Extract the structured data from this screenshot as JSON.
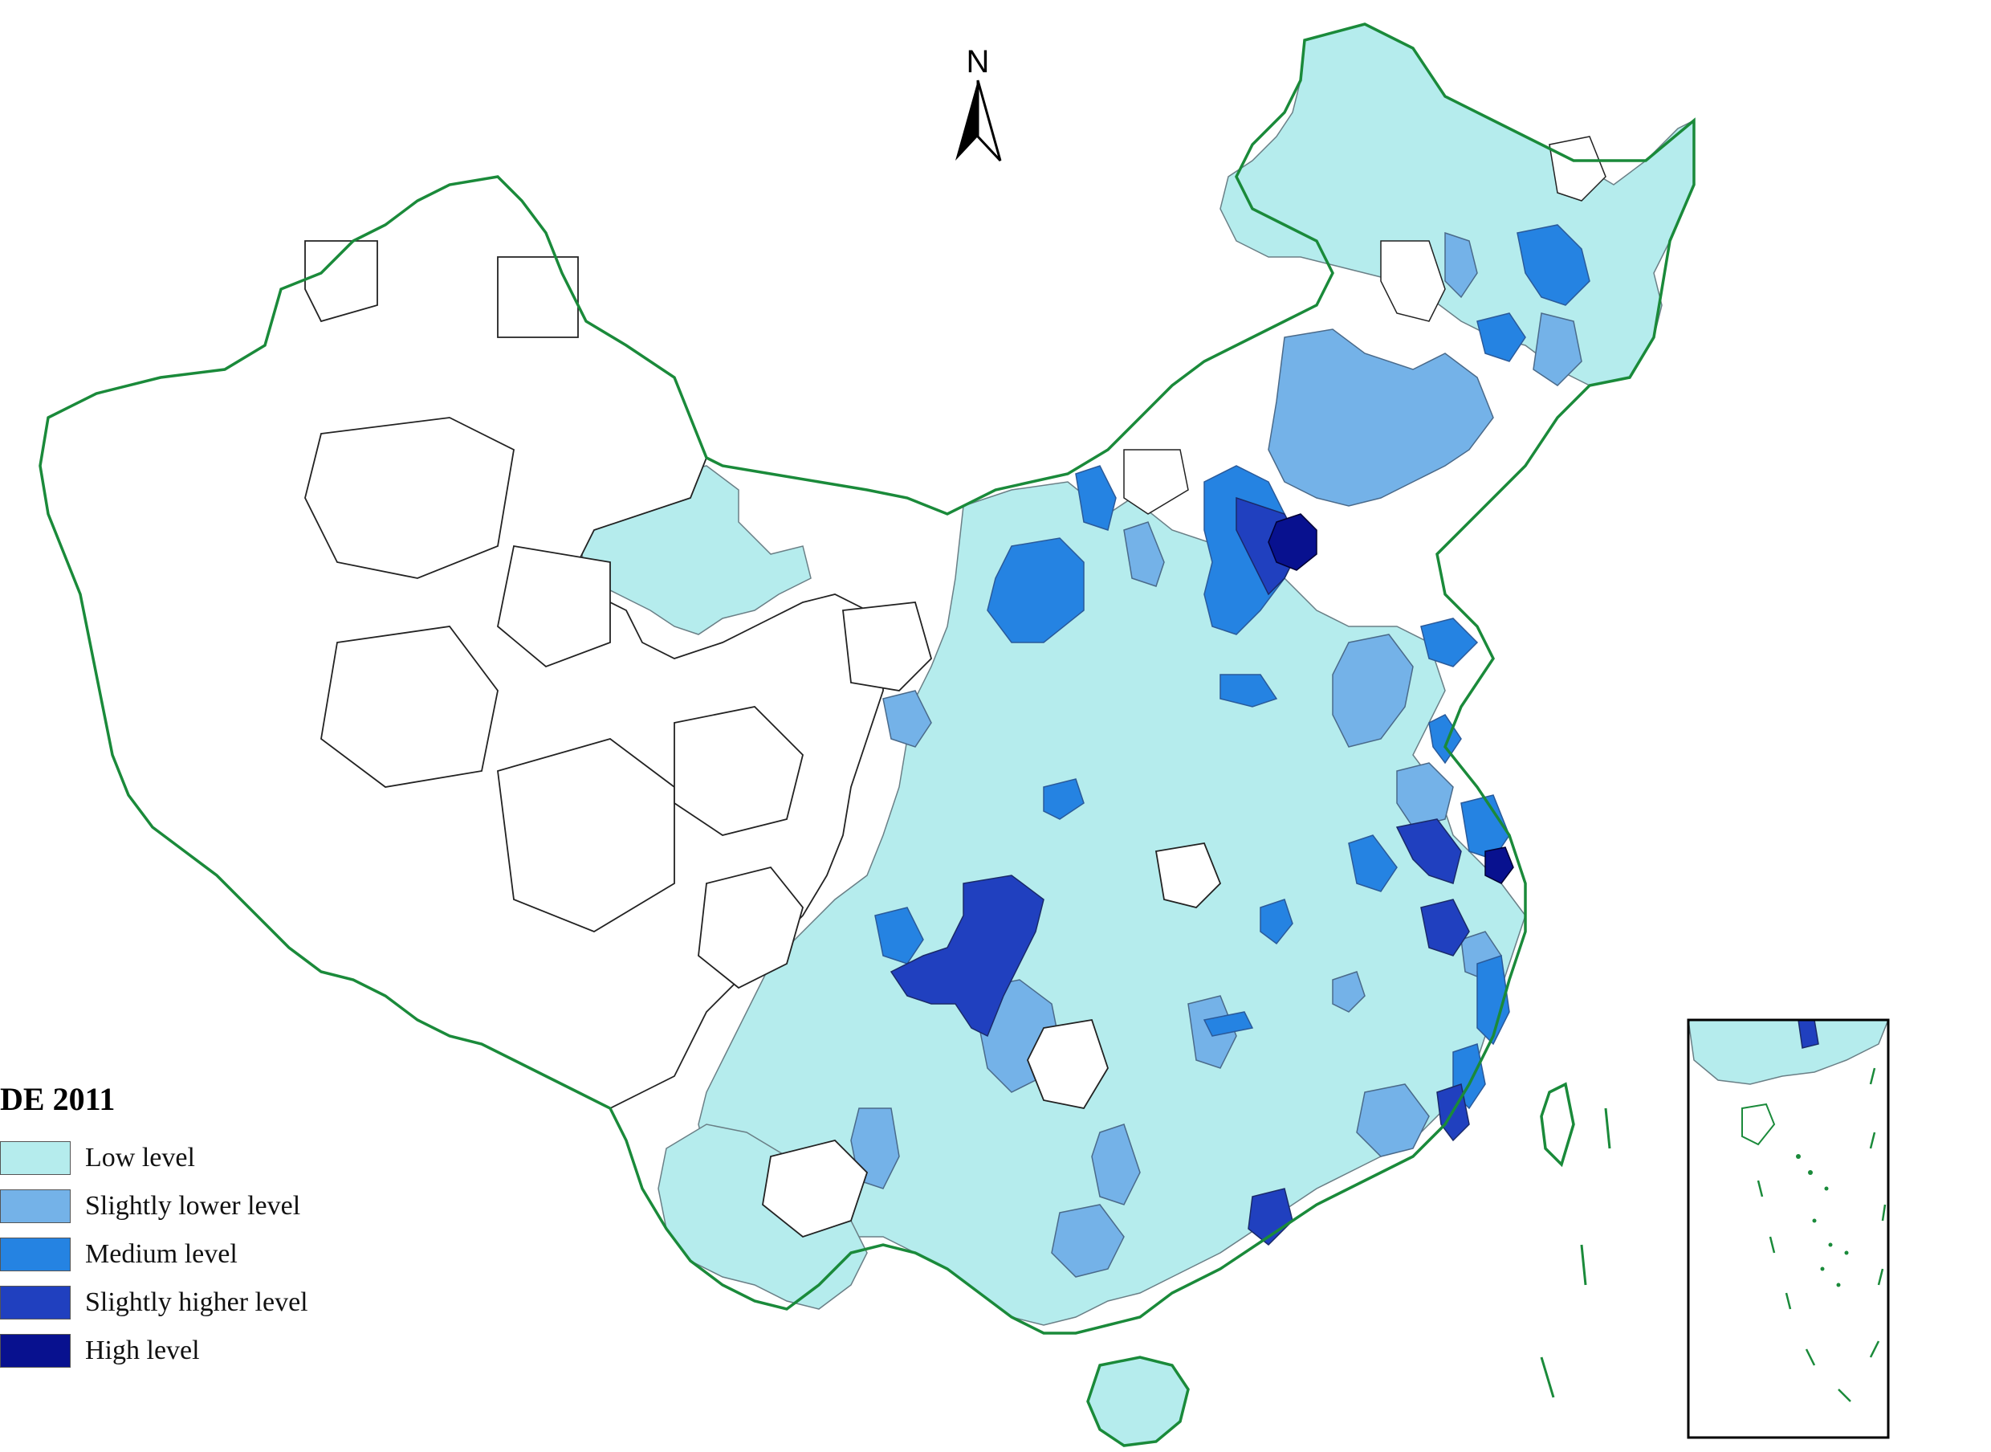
{
  "map": {
    "title": "DE 2011",
    "north_label": "N",
    "legend": [
      {
        "label": "Low level",
        "color": "#b5eced"
      },
      {
        "label": "Slightly lower level",
        "color": "#74b2e8"
      },
      {
        "label": "Medium level",
        "color": "#2583e2"
      },
      {
        "label": "Slightly higher level",
        "color": "#2040bf"
      },
      {
        "label": "High level",
        "color": "#08118f"
      }
    ],
    "border_color": "#1a8a3a",
    "no_data_color": "#ffffff"
  }
}
